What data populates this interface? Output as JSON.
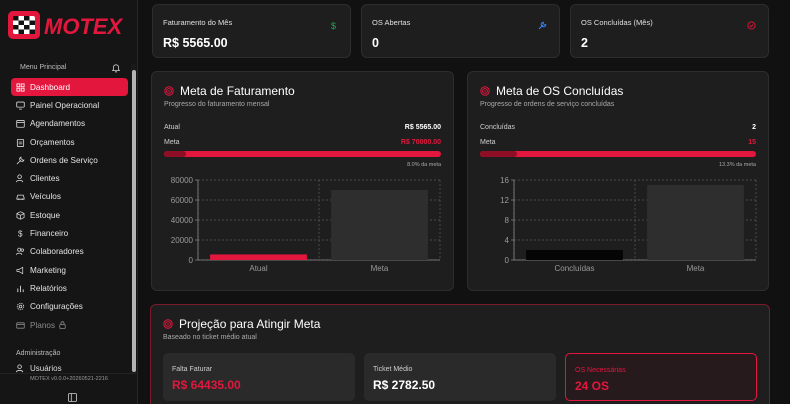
{
  "brand": {
    "name": "MOTEX",
    "accent": "#e3173e"
  },
  "sidebar": {
    "menu_title": "Menu Principal",
    "items": [
      {
        "label": "Dashboard",
        "icon": "grid-icon",
        "active": true
      },
      {
        "label": "Painel Operacional",
        "icon": "monitor-icon"
      },
      {
        "label": "Agendamentos",
        "icon": "calendar-icon"
      },
      {
        "label": "Orçamentos",
        "icon": "clipboard-icon"
      },
      {
        "label": "Ordens de Serviço",
        "icon": "wrench-icon"
      },
      {
        "label": "Clientes",
        "icon": "users-icon"
      },
      {
        "label": "Veículos",
        "icon": "car-icon"
      },
      {
        "label": "Estoque",
        "icon": "package-icon"
      },
      {
        "label": "Financeiro",
        "icon": "dollar-icon"
      },
      {
        "label": "Colaboradores",
        "icon": "user-group-icon"
      },
      {
        "label": "Marketing",
        "icon": "megaphone-icon"
      },
      {
        "label": "Relatórios",
        "icon": "bar-chart-icon"
      },
      {
        "label": "Configurações",
        "icon": "gear-icon"
      },
      {
        "label": "Planos",
        "icon": "card-icon",
        "locked": true
      }
    ],
    "admin_title": "Administração",
    "admin_item": "Usuários",
    "version": "MOTEX v0.0.0+20260521-2216"
  },
  "stats": [
    {
      "label": "Faturamento do Mês",
      "value": "R$ 5565.00",
      "icon": "dollar-icon",
      "icon_color": "#22a355"
    },
    {
      "label": "OS Abertas",
      "value": "0",
      "icon": "wrench-icon",
      "icon_color": "#3b82f6"
    },
    {
      "label": "OS Concluídas (Mês)",
      "value": "2",
      "icon": "check-circle-icon",
      "icon_color": "#e3173e"
    }
  ],
  "revenue_goal": {
    "title": "Meta de Faturamento",
    "subtitle": "Progresso do faturamento mensal",
    "current_label": "Atual",
    "current_value": "R$ 5565.00",
    "goal_label": "Meta",
    "goal_value": "R$ 70000.00",
    "progress": 0.08,
    "progress_text": "8.0% da meta"
  },
  "os_goal": {
    "title": "Meta de OS Concluídas",
    "subtitle": "Progresso de ordens de serviço concluídas",
    "current_label": "Concluídas",
    "current_value": "2",
    "goal_label": "Meta",
    "goal_value": "15",
    "progress": 0.133,
    "progress_text": "13.3% da meta"
  },
  "projection": {
    "title": "Projeção para Atingir Meta",
    "subtitle": "Baseado no ticket médio atual",
    "cards": [
      {
        "label": "Falta Faturar",
        "value": "R$ 64435.00"
      },
      {
        "label": "Ticket Médio",
        "value": "R$ 2782.50"
      },
      {
        "label": "OS Necessárias",
        "value": "24 OS"
      }
    ]
  },
  "chart_data": [
    {
      "type": "bar",
      "categories": [
        "Atual",
        "Meta"
      ],
      "values": [
        5565,
        70000
      ],
      "colors": [
        "#e3173e",
        "#2e2e2e"
      ],
      "yticks": [
        "80000",
        "60000",
        "40000",
        "20000",
        "0"
      ],
      "ylim": [
        0,
        80000
      ],
      "grid": true
    },
    {
      "type": "bar",
      "categories": [
        "Concluídas",
        "Meta"
      ],
      "values": [
        2,
        15
      ],
      "colors": [
        "#050505",
        "#2e2e2e"
      ],
      "yticks": [
        "16",
        "12",
        "8",
        "4",
        "0"
      ],
      "ylim": [
        0,
        16
      ],
      "grid": true
    }
  ]
}
